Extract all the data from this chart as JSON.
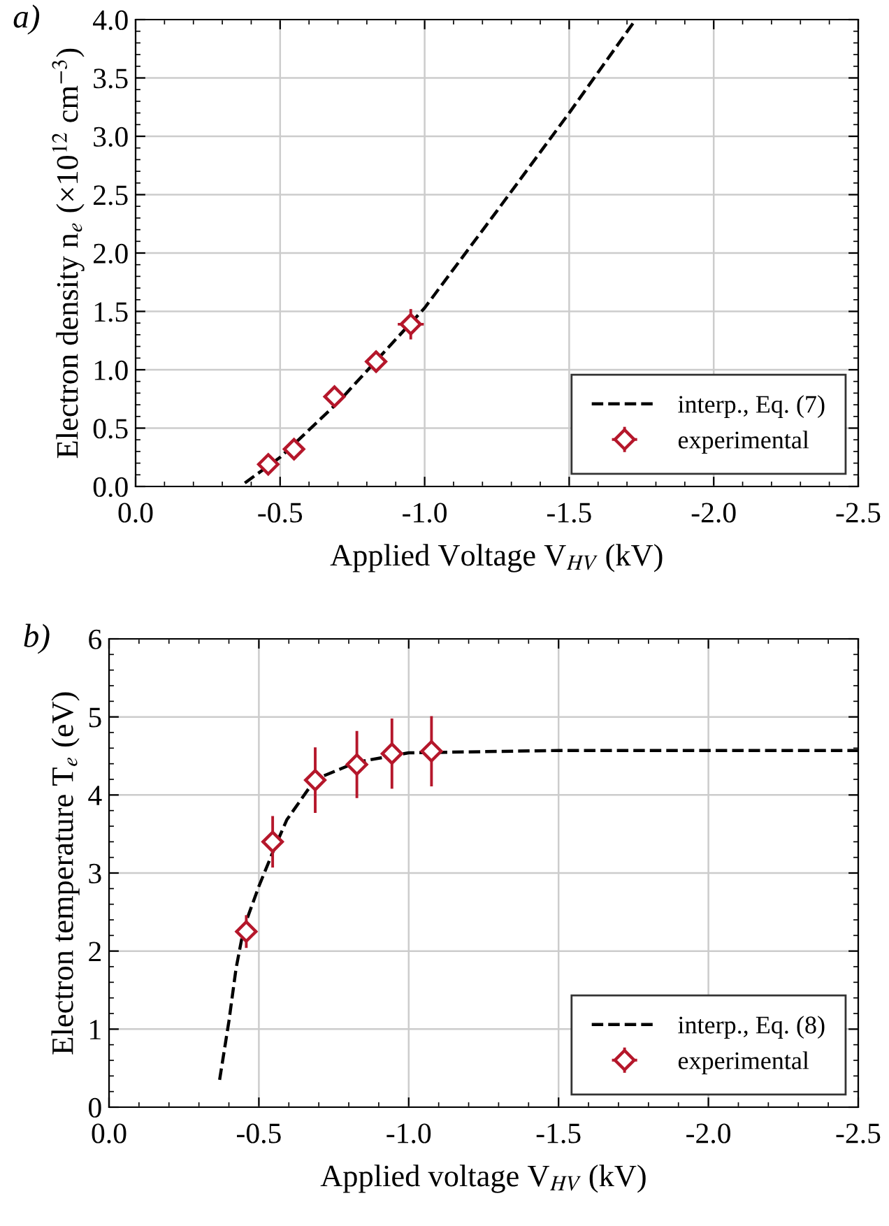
{
  "chart_data": [
    {
      "type": "line",
      "xlabel": "Applied Voltage V$_{HV}$ (kV)",
      "ylabel": "Electron density n$_{e}$ (×10$^{12}$ cm$^{−3}$)",
      "annotations": [
        "a)"
      ],
      "xlim": [
        0.0,
        -2.5
      ],
      "xticks": [
        {
          "value": 0,
          "label": "0.0"
        },
        -0.5,
        {
          "value": -1,
          "label": "-1.0"
        },
        -1.5,
        {
          "value": -2,
          "label": "-2.0"
        },
        -2.5
      ],
      "ylim": [
        0.0,
        4.0
      ],
      "yticks": [
        {
          "value": 0,
          "label": "0.0"
        },
        0.5,
        {
          "value": 1,
          "label": "1.0"
        },
        1.5,
        {
          "value": 2,
          "label": "2.0"
        },
        2.5,
        {
          "value": 3,
          "label": "3.0"
        },
        3.5,
        {
          "value": 4,
          "label": "4.0"
        }
      ],
      "grid": true,
      "legend": "bottom right",
      "series": [
        {
          "name": "interp., Eq. (7)",
          "color": "#000000",
          "line_style": "dashed",
          "marker": "none",
          "x": [
            -0.378,
            -0.5,
            -0.7,
            -1.0,
            -1.25,
            -1.5,
            -1.73
          ],
          "values": [
            0.03,
            0.25,
            0.72,
            1.53,
            2.36,
            3.2,
            4.0
          ]
        },
        {
          "name": "experimental",
          "type": "scatter",
          "color": "#b5172b",
          "marker": "diamond",
          "x": [
            -0.459,
            -0.548,
            -0.688,
            -0.832,
            -0.952
          ],
          "values": [
            0.19,
            0.32,
            0.77,
            1.07,
            1.39
          ],
          "errors": [
            0.04,
            0.04,
            0.05,
            0.09,
            0.13
          ],
          "xerrors": [
            0.035,
            0.035,
            0.035,
            0.035,
            0.045
          ]
        }
      ]
    },
    {
      "type": "line",
      "xlabel": "Applied voltage V$_{HV}$ (kV)",
      "ylabel": "Electron temperature T$_{e}$ (eV)",
      "annotations": [
        "b)"
      ],
      "xlim": [
        0.0,
        -2.5
      ],
      "xticks": [
        {
          "value": 0,
          "label": "0.0"
        },
        -0.5,
        {
          "value": -1,
          "label": "-1.0"
        },
        -1.5,
        {
          "value": -2,
          "label": "-2.0"
        },
        -2.5
      ],
      "ylim": [
        0,
        6
      ],
      "yticks": [
        0,
        1,
        2,
        3,
        4,
        5,
        6
      ],
      "grid": true,
      "legend": "bottom right",
      "series": [
        {
          "name": "interp., Eq. (8)",
          "color": "#000000",
          "line_style": "dashed",
          "marker": "none",
          "x": [
            -0.369,
            -0.4,
            -0.424,
            -0.45,
            -0.5,
            -0.55,
            -0.593,
            -0.688,
            -0.827,
            -1.0,
            -1.5,
            -2.0,
            -2.5
          ],
          "values": [
            0.35,
            1.1,
            1.78,
            2.3,
            2.83,
            3.3,
            3.68,
            4.2,
            4.42,
            4.54,
            4.57,
            4.57,
            4.57
          ]
        },
        {
          "name": "experimental",
          "type": "scatter",
          "color": "#b5172b",
          "marker": "diamond",
          "x": [
            -0.458,
            -0.546,
            -0.688,
            -0.827,
            -0.944,
            -1.076
          ],
          "values": [
            2.25,
            3.4,
            4.19,
            4.39,
            4.53,
            4.56
          ],
          "errors": [
            0.21,
            0.33,
            0.42,
            0.43,
            0.45,
            0.45
          ],
          "xerrors": [
            0.035,
            0.035,
            0.035,
            0.035,
            0.035,
            0.035
          ]
        }
      ]
    }
  ]
}
